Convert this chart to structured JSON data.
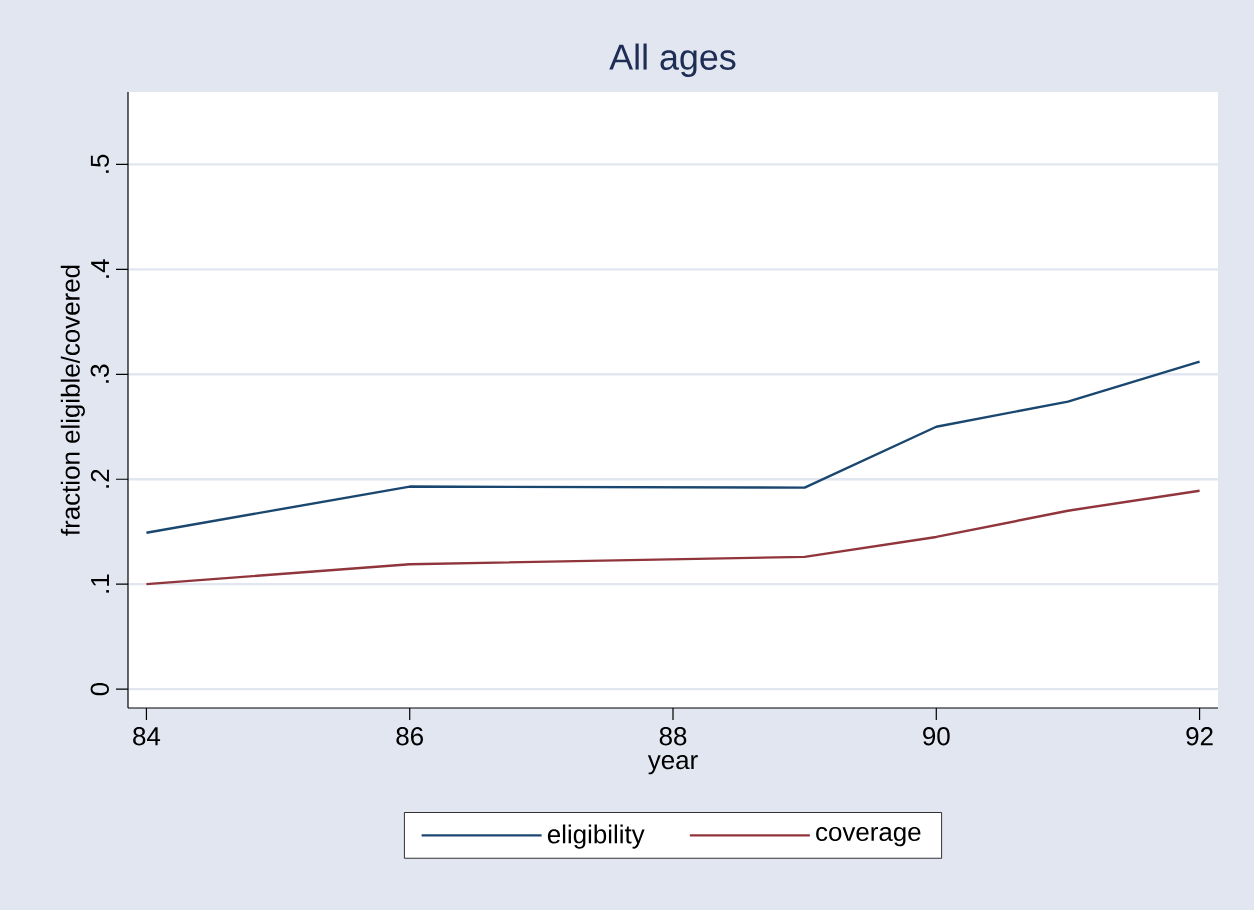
{
  "chart_data": {
    "type": "line",
    "title": "All ages",
    "xlabel": "year",
    "ylabel": "fraction eligible/covered",
    "xlim": [
      83.86,
      92.14
    ],
    "ylim": [
      -0.018,
      0.569
    ],
    "xticks": [
      84,
      86,
      88,
      90,
      92
    ],
    "yticks": [
      0,
      {
        "value": 0.1,
        "label": ".1"
      },
      {
        "value": 0.2,
        "label": ".2"
      },
      {
        "value": 0.3,
        "label": ".3"
      },
      {
        "value": 0.4,
        "label": ".4"
      },
      {
        "value": 0.5,
        "label": ".5"
      }
    ],
    "grid": "y",
    "legend": "bottom",
    "line_style": "solid",
    "x": [
      84,
      86,
      89,
      90,
      91,
      92
    ],
    "series": [
      {
        "name": "eligibility",
        "color": "#1a476f",
        "values": [
          0.149,
          0.193,
          0.192,
          0.25,
          0.274,
          0.312
        ]
      },
      {
        "name": "coverage",
        "color": "#90353b",
        "values": [
          0.1,
          0.119,
          0.126,
          0.145,
          0.17,
          0.189
        ]
      }
    ]
  }
}
